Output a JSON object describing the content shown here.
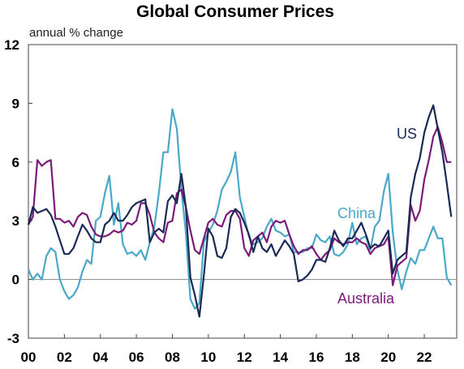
{
  "chart_data": {
    "type": "line",
    "title": "Global Consumer Prices",
    "ylabel": "annual % change",
    "xlabel": "",
    "xlim": [
      2000,
      2023.8
    ],
    "ylim": [
      -3,
      12
    ],
    "yticks": [
      12,
      9,
      6,
      3,
      0,
      -3
    ],
    "ytick_labels": [
      "12",
      "9",
      "6",
      "3",
      "0",
      "-3"
    ],
    "xticks": [
      2000,
      2002,
      2004,
      2006,
      2008,
      2010,
      2012,
      2014,
      2016,
      2018,
      2020,
      2022
    ],
    "xtick_labels": [
      "00",
      "02",
      "04",
      "06",
      "08",
      "10",
      "12",
      "14",
      "16",
      "18",
      "20",
      "22"
    ],
    "zero_line": true,
    "grid": false,
    "legend": "direct labels",
    "series": [
      {
        "name": "US",
        "color": "#1b2a55",
        "x": [
          2000.0,
          2000.25,
          2000.5,
          2000.75,
          2001.0,
          2001.25,
          2001.5,
          2001.75,
          2002.0,
          2002.25,
          2002.5,
          2002.75,
          2003.0,
          2003.25,
          2003.5,
          2003.75,
          2004.0,
          2004.25,
          2004.5,
          2004.75,
          2005.0,
          2005.25,
          2005.5,
          2005.75,
          2006.0,
          2006.25,
          2006.5,
          2006.75,
          2007.0,
          2007.25,
          2007.5,
          2007.75,
          2008.0,
          2008.25,
          2008.5,
          2008.75,
          2009.0,
          2009.25,
          2009.5,
          2009.75,
          2010.0,
          2010.25,
          2010.5,
          2010.75,
          2011.0,
          2011.25,
          2011.5,
          2011.75,
          2012.0,
          2012.25,
          2012.5,
          2012.75,
          2013.0,
          2013.25,
          2013.5,
          2013.75,
          2014.0,
          2014.25,
          2014.5,
          2014.75,
          2015.0,
          2015.25,
          2015.5,
          2015.75,
          2016.0,
          2016.25,
          2016.5,
          2016.75,
          2017.0,
          2017.25,
          2017.5,
          2017.75,
          2018.0,
          2018.25,
          2018.5,
          2018.75,
          2019.0,
          2019.25,
          2019.5,
          2019.75,
          2020.0,
          2020.25,
          2020.5,
          2020.75,
          2021.0,
          2021.25,
          2021.5,
          2021.75,
          2022.0,
          2022.25,
          2022.5,
          2022.75,
          2023.0,
          2023.25,
          2023.5
        ],
        "values": [
          2.8,
          3.7,
          3.4,
          3.5,
          3.6,
          3.3,
          2.7,
          2.0,
          1.3,
          1.3,
          1.6,
          2.2,
          2.8,
          2.5,
          2.1,
          1.9,
          1.9,
          2.8,
          3.0,
          3.4,
          3.0,
          3.0,
          3.3,
          3.7,
          3.9,
          4.0,
          4.1,
          1.9,
          2.4,
          2.6,
          2.4,
          4.0,
          4.3,
          3.9,
          5.4,
          3.7,
          0.1,
          -0.8,
          -1.9,
          0.2,
          2.6,
          2.2,
          1.2,
          1.1,
          1.6,
          3.2,
          3.6,
          3.4,
          2.9,
          2.3,
          1.4,
          2.2,
          1.6,
          1.4,
          1.8,
          1.2,
          1.6,
          2.0,
          1.7,
          1.3,
          -0.1,
          0.0,
          0.2,
          0.5,
          1.0,
          1.0,
          0.9,
          1.6,
          2.5,
          2.0,
          1.7,
          2.1,
          2.1,
          2.5,
          2.9,
          2.3,
          1.6,
          1.8,
          1.7,
          2.1,
          2.5,
          0.3,
          1.0,
          1.2,
          1.4,
          4.2,
          5.4,
          6.2,
          7.5,
          8.3,
          8.9,
          7.7,
          6.5,
          4.9,
          3.2
        ]
      },
      {
        "name": "China",
        "color": "#4aa8c8",
        "x": [
          2000.0,
          2000.25,
          2000.5,
          2000.75,
          2001.0,
          2001.25,
          2001.5,
          2001.75,
          2002.0,
          2002.25,
          2002.5,
          2002.75,
          2003.0,
          2003.25,
          2003.5,
          2003.75,
          2004.0,
          2004.25,
          2004.5,
          2004.75,
          2005.0,
          2005.25,
          2005.5,
          2005.75,
          2006.0,
          2006.25,
          2006.5,
          2006.75,
          2007.0,
          2007.25,
          2007.5,
          2007.75,
          2008.0,
          2008.25,
          2008.5,
          2008.75,
          2009.0,
          2009.25,
          2009.5,
          2009.75,
          2010.0,
          2010.25,
          2010.5,
          2010.75,
          2011.0,
          2011.25,
          2011.5,
          2011.75,
          2012.0,
          2012.25,
          2012.5,
          2012.75,
          2013.0,
          2013.25,
          2013.5,
          2013.75,
          2014.0,
          2014.25,
          2014.5,
          2014.75,
          2015.0,
          2015.25,
          2015.5,
          2015.75,
          2016.0,
          2016.25,
          2016.5,
          2016.75,
          2017.0,
          2017.25,
          2017.5,
          2017.75,
          2018.0,
          2018.25,
          2018.5,
          2018.75,
          2019.0,
          2019.25,
          2019.5,
          2019.75,
          2020.0,
          2020.25,
          2020.5,
          2020.75,
          2021.0,
          2021.25,
          2021.5,
          2021.75,
          2022.0,
          2022.25,
          2022.5,
          2022.75,
          2023.0,
          2023.25,
          2023.5
        ],
        "values": [
          0.5,
          0.0,
          0.3,
          0.0,
          1.2,
          1.6,
          1.4,
          0.0,
          -0.6,
          -1.0,
          -0.8,
          -0.4,
          0.4,
          1.0,
          0.8,
          3.0,
          3.2,
          4.4,
          5.3,
          2.8,
          3.9,
          1.8,
          1.3,
          1.4,
          1.2,
          1.5,
          1.0,
          1.9,
          2.7,
          4.4,
          6.5,
          6.5,
          8.7,
          7.7,
          4.6,
          2.4,
          -1.0,
          -1.5,
          -1.2,
          1.9,
          2.4,
          2.8,
          3.5,
          4.6,
          5.0,
          5.5,
          6.5,
          4.2,
          3.2,
          2.2,
          1.8,
          1.9,
          2.1,
          2.7,
          3.1,
          2.5,
          2.4,
          2.2,
          2.3,
          1.4,
          1.4,
          1.4,
          1.6,
          1.6,
          2.3,
          2.0,
          1.9,
          2.2,
          1.3,
          1.2,
          1.4,
          1.8,
          2.9,
          1.8,
          2.1,
          2.2,
          1.5,
          2.7,
          3.0,
          4.5,
          5.4,
          2.4,
          0.5,
          -0.5,
          0.4,
          1.1,
          0.8,
          1.5,
          1.5,
          2.1,
          2.7,
          2.1,
          2.1,
          0.1,
          -0.3
        ]
      },
      {
        "name": "Australia",
        "color": "#7b1a7b",
        "x": [
          2000.0,
          2000.25,
          2000.5,
          2000.75,
          2001.0,
          2001.25,
          2001.5,
          2001.75,
          2002.0,
          2002.25,
          2002.5,
          2002.75,
          2003.0,
          2003.25,
          2003.5,
          2003.75,
          2004.0,
          2004.25,
          2004.5,
          2004.75,
          2005.0,
          2005.25,
          2005.5,
          2005.75,
          2006.0,
          2006.25,
          2006.5,
          2006.75,
          2007.0,
          2007.25,
          2007.5,
          2007.75,
          2008.0,
          2008.25,
          2008.5,
          2008.75,
          2009.0,
          2009.25,
          2009.5,
          2009.75,
          2010.0,
          2010.25,
          2010.5,
          2010.75,
          2011.0,
          2011.25,
          2011.5,
          2011.75,
          2012.0,
          2012.25,
          2012.5,
          2012.75,
          2013.0,
          2013.25,
          2013.5,
          2013.75,
          2014.0,
          2014.25,
          2014.5,
          2014.75,
          2015.0,
          2015.25,
          2015.5,
          2015.75,
          2016.0,
          2016.25,
          2016.5,
          2016.75,
          2017.0,
          2017.25,
          2017.5,
          2017.75,
          2018.0,
          2018.25,
          2018.5,
          2018.75,
          2019.0,
          2019.25,
          2019.5,
          2019.75,
          2020.0,
          2020.25,
          2020.5,
          2020.75,
          2021.0,
          2021.25,
          2021.5,
          2021.75,
          2022.0,
          2022.25,
          2022.5,
          2022.75,
          2023.0,
          2023.25,
          2023.5
        ],
        "values": [
          2.8,
          3.2,
          6.1,
          5.8,
          6.0,
          6.1,
          3.1,
          3.1,
          2.9,
          3.0,
          2.7,
          3.2,
          3.4,
          3.3,
          2.7,
          2.3,
          2.2,
          2.2,
          2.3,
          2.5,
          2.4,
          2.5,
          2.9,
          2.8,
          3.0,
          3.9,
          3.9,
          3.3,
          2.4,
          2.1,
          1.9,
          2.9,
          3.0,
          4.4,
          4.6,
          3.7,
          2.5,
          1.5,
          1.3,
          2.1,
          2.9,
          3.1,
          2.8,
          2.7,
          3.3,
          3.5,
          3.5,
          3.1,
          1.6,
          1.2,
          2.0,
          2.2,
          2.4,
          1.9,
          2.7,
          3.0,
          2.9,
          3.0,
          2.3,
          1.7,
          1.3,
          1.5,
          1.5,
          1.7,
          1.3,
          1.0,
          1.3,
          1.5,
          2.1,
          1.9,
          1.8,
          1.9,
          1.9,
          2.1,
          1.9,
          1.8,
          1.3,
          1.6,
          1.7,
          1.8,
          2.2,
          -0.3,
          0.7,
          0.9,
          1.1,
          3.8,
          3.0,
          3.5,
          5.1,
          6.1,
          7.3,
          7.8,
          7.0,
          6.0,
          6.0
        ]
      }
    ],
    "annotations": [
      "US",
      "China",
      "Australia"
    ]
  }
}
